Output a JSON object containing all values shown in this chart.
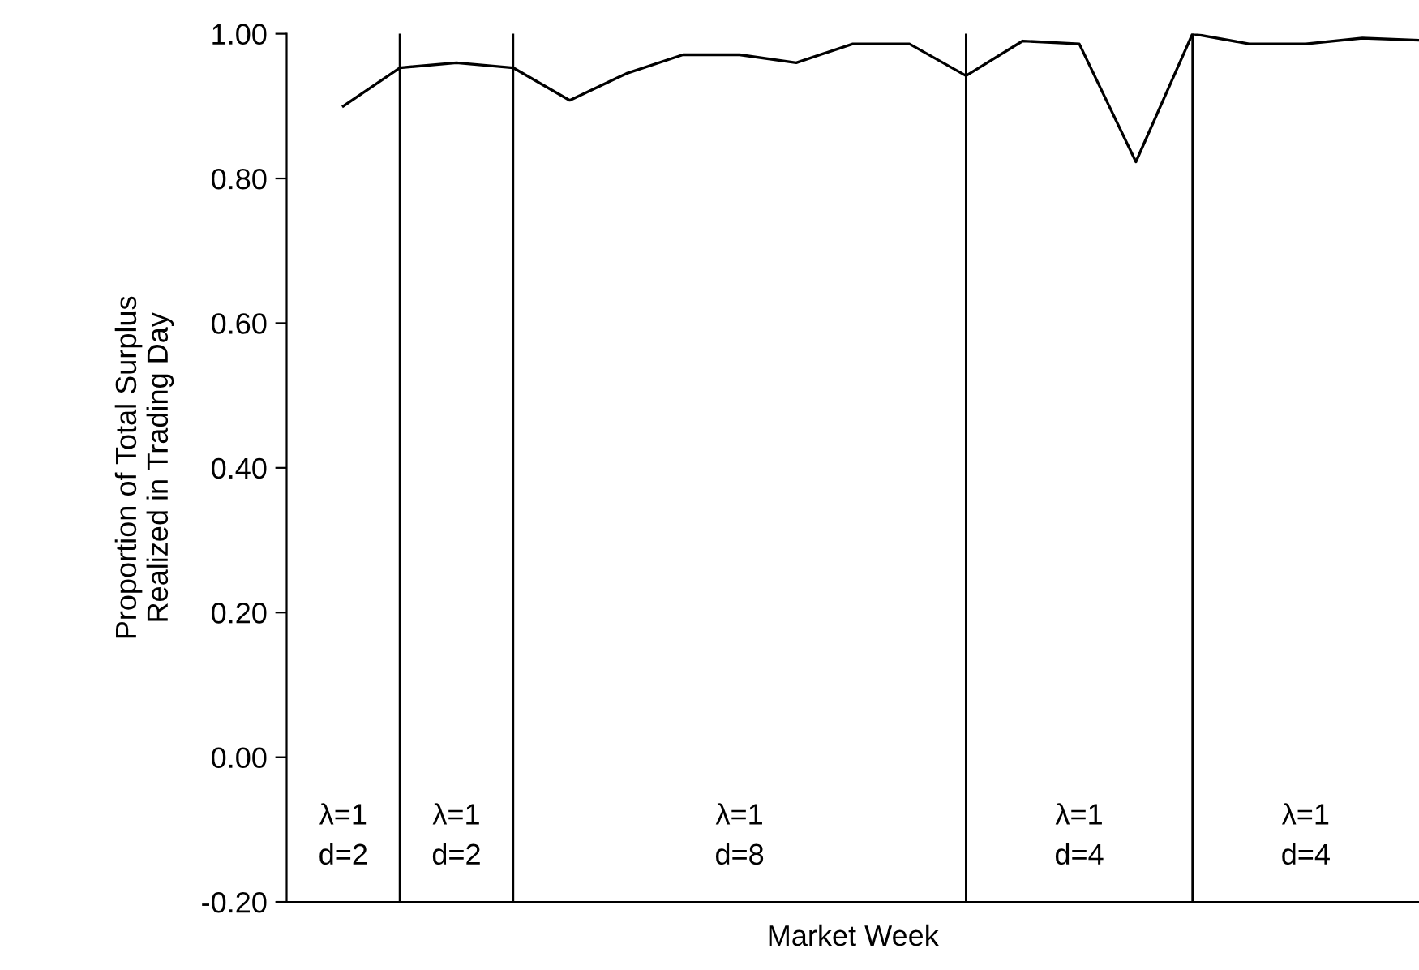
{
  "chart_data": {
    "type": "line",
    "xlabel": "Market Week",
    "ylabel": "Proportion of Total Surplus\nRealized in Trading Day",
    "categories": [
      null,
      null,
      null,
      null,
      null,
      null,
      null,
      null,
      null,
      null,
      null,
      null,
      null,
      null,
      null,
      null,
      null,
      null,
      null,
      null
    ],
    "series": [
      {
        "color": "#000000",
        "values": [
          0.9,
          0.953,
          0.96,
          0.953,
          0.908,
          0.945,
          0.971,
          0.971,
          0.96,
          0.986,
          0.986,
          0.942,
          0.99,
          0.986,
          0.823,
          1.0,
          0.986,
          0.986,
          0.994,
          0.991
        ]
      }
    ],
    "ylim": [
      -0.2,
      1.0
    ],
    "yticks": [
      {
        "value": -0.2,
        "label": "-0.20"
      },
      {
        "value": 0,
        "label": "0.00"
      },
      {
        "value": 0.2,
        "label": "0.20"
      },
      {
        "value": 0.4,
        "label": "0.40"
      },
      {
        "value": 0.6,
        "label": "0.60"
      },
      {
        "value": 0.8,
        "label": "0.80"
      },
      {
        "value": 1.0,
        "label": "1.00"
      }
    ],
    "tick_labels": "y",
    "grid": "x",
    "marker": "none",
    "line_style": "solid",
    "annotations": [
      "λ=1\nd=2",
      "λ=1\nd=2",
      "λ=1\nd=8",
      "λ=1\nd=4",
      "λ=1\nd=4"
    ]
  }
}
